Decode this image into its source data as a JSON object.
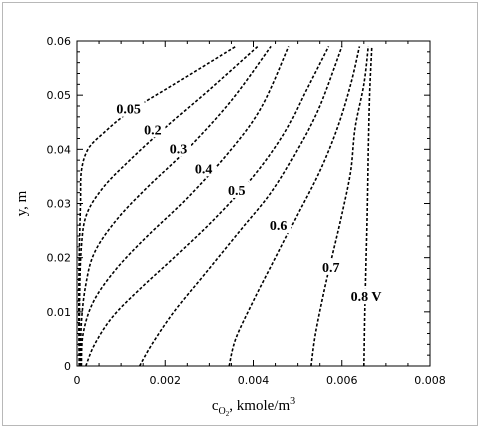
{
  "chart_data": {
    "type": "line",
    "xlabel": "c",
    "xlabel_sub": "O",
    "xlabel_sub2": "2",
    "xlabel_tail": ", kmole/m",
    "xlabel_sup": "3",
    "ylabel": "y, m",
    "xlim": [
      0,
      0.008
    ],
    "ylim": [
      0,
      0.06
    ],
    "xticks": [
      "0",
      "0.002",
      "0.004",
      "0.006",
      "0.008"
    ],
    "yticks": [
      "0",
      "0.01",
      "0.02",
      "0.03",
      "0.04",
      "0.05",
      "0.06"
    ],
    "xtick_values": [
      0,
      0.002,
      0.004,
      0.006,
      0.008
    ],
    "ytick_values": [
      0,
      0.01,
      0.02,
      0.03,
      0.04,
      0.05,
      0.06
    ],
    "series": [
      {
        "name": "0.05",
        "label_at": [
          0.00117,
          0.0475
        ],
        "points": [
          [
            5e-05,
            0
          ],
          [
            4e-05,
            0.01
          ],
          [
            5e-05,
            0.02
          ],
          [
            8e-05,
            0.03
          ],
          [
            0.0001,
            0.036
          ],
          [
            0.00025,
            0.04
          ],
          [
            0.0006,
            0.043
          ],
          [
            0.0012,
            0.047
          ],
          [
            0.0022,
            0.052
          ],
          [
            0.0034,
            0.058
          ],
          [
            0.0036,
            0.059
          ]
        ]
      },
      {
        "name": "0.2",
        "label_at": [
          0.00172,
          0.0437
        ],
        "points": [
          [
            6e-05,
            0
          ],
          [
            6e-05,
            0.012
          ],
          [
            0.0001,
            0.022
          ],
          [
            0.00022,
            0.028
          ],
          [
            0.0006,
            0.033
          ],
          [
            0.0012,
            0.038
          ],
          [
            0.002,
            0.044
          ],
          [
            0.003,
            0.051
          ],
          [
            0.0041,
            0.059
          ]
        ]
      },
      {
        "name": "0.3",
        "label_at": [
          0.0023,
          0.0402
        ],
        "points": [
          [
            8e-05,
            0
          ],
          [
            0.0001,
            0.008
          ],
          [
            0.0002,
            0.015
          ],
          [
            0.0004,
            0.021
          ],
          [
            0.0009,
            0.027
          ],
          [
            0.0016,
            0.033
          ],
          [
            0.0025,
            0.04
          ],
          [
            0.0035,
            0.049
          ],
          [
            0.0044,
            0.059
          ]
        ]
      },
      {
        "name": "0.4",
        "label_at": [
          0.00287,
          0.0365
        ],
        "points": [
          [
            0.0001,
            0
          ],
          [
            0.00014,
            0.006
          ],
          [
            0.00038,
            0.012
          ],
          [
            0.0009,
            0.018
          ],
          [
            0.0016,
            0.024
          ],
          [
            0.0025,
            0.031
          ],
          [
            0.0035,
            0.04
          ],
          [
            0.0042,
            0.048
          ],
          [
            0.0048,
            0.059
          ]
        ]
      },
      {
        "name": "0.5",
        "label_at": [
          0.00362,
          0.0325
        ],
        "points": [
          [
            0.0002,
            0
          ],
          [
            0.0004,
            0.004
          ],
          [
            0.0008,
            0.009
          ],
          [
            0.0014,
            0.014
          ],
          [
            0.0022,
            0.02
          ],
          [
            0.0031,
            0.027
          ],
          [
            0.004,
            0.035
          ],
          [
            0.0047,
            0.043
          ],
          [
            0.0052,
            0.051
          ],
          [
            0.0057,
            0.059
          ]
        ]
      },
      {
        "name": "0.6",
        "label_at": [
          0.00457,
          0.026
        ],
        "points": [
          [
            0.00142,
            0
          ],
          [
            0.0017,
            0.004
          ],
          [
            0.0022,
            0.01
          ],
          [
            0.0029,
            0.017
          ],
          [
            0.0037,
            0.025
          ],
          [
            0.0044,
            0.032
          ],
          [
            0.005,
            0.04
          ],
          [
            0.0055,
            0.048
          ],
          [
            0.006,
            0.059
          ]
        ]
      },
      {
        "name": "0.7",
        "label_at": [
          0.00575,
          0.0183
        ],
        "points": [
          [
            0.00345,
            0
          ],
          [
            0.0036,
            0.005
          ],
          [
            0.004,
            0.012
          ],
          [
            0.0045,
            0.02
          ],
          [
            0.005,
            0.028
          ],
          [
            0.0055,
            0.036
          ],
          [
            0.0059,
            0.044
          ],
          [
            0.0062,
            0.052
          ],
          [
            0.0064,
            0.059
          ]
        ]
      },
      {
        "name": "0.8 V",
        "label_at": [
          0.00655,
          0.0129
        ],
        "points": [
          [
            0.0053,
            0
          ],
          [
            0.0054,
            0.006
          ],
          [
            0.0056,
            0.014
          ],
          [
            0.0058,
            0.021
          ],
          [
            0.006,
            0.028
          ],
          [
            0.0062,
            0.036
          ],
          [
            0.0063,
            0.044
          ],
          [
            0.0065,
            0.052
          ],
          [
            0.0066,
            0.059
          ]
        ]
      },
      {
        "name": "",
        "points": [
          [
            0.0065,
            0
          ],
          [
            0.00652,
            0.01
          ],
          [
            0.00655,
            0.02
          ],
          [
            0.00658,
            0.03
          ],
          [
            0.0066,
            0.04
          ],
          [
            0.00663,
            0.05
          ],
          [
            0.00668,
            0.059
          ]
        ]
      }
    ]
  }
}
